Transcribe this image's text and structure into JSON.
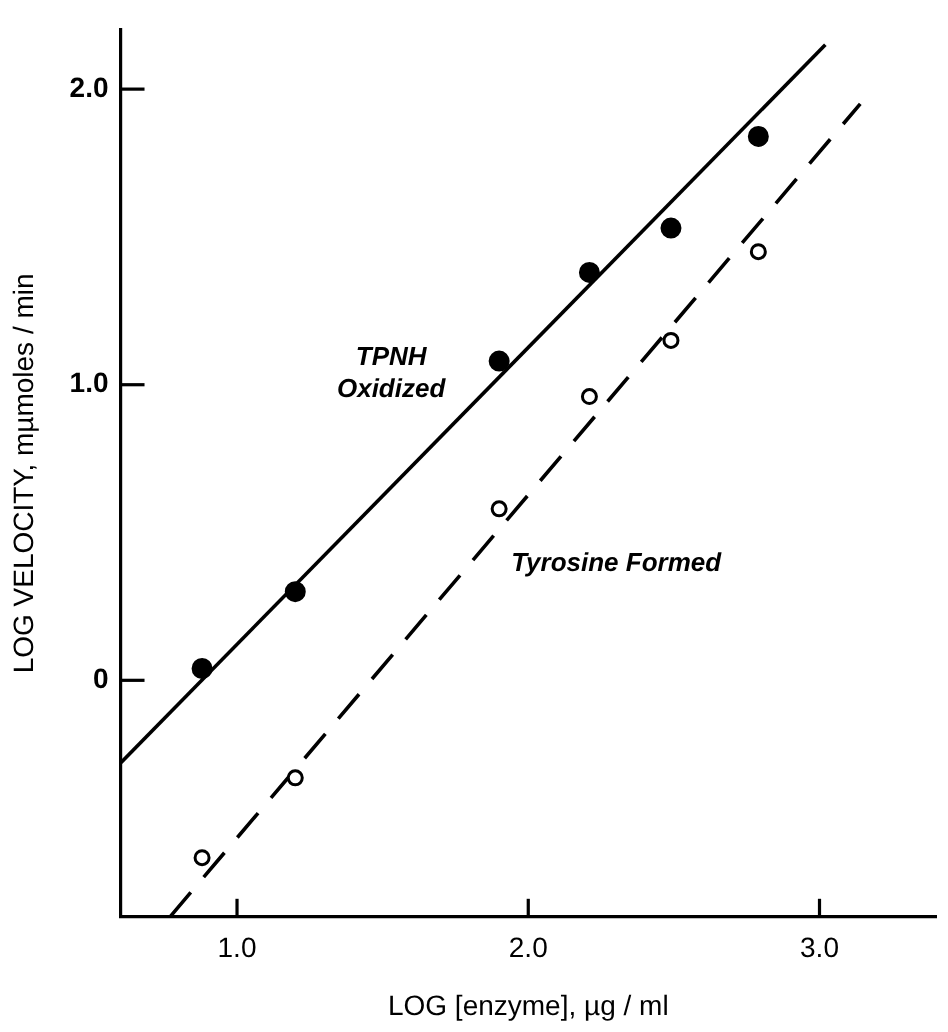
{
  "chart_data": {
    "type": "scatter",
    "xlabel": "LOG [enzyme], µg / ml",
    "ylabel": "LOG VELOCITY, mµmoles / min",
    "xlim": [
      0.6,
      3.4
    ],
    "ylim": [
      -0.8,
      2.2
    ],
    "xticks": [
      {
        "value": 1,
        "label": "1.0"
      },
      {
        "value": 2,
        "label": "2.0"
      },
      {
        "value": 3,
        "label": "3.0"
      }
    ],
    "yticks": [
      0,
      {
        "value": 1,
        "label": "1.0"
      },
      {
        "value": 2,
        "label": "2.0"
      }
    ],
    "grid": false,
    "legend": false,
    "marker": "circle",
    "series": [
      {
        "name": "TPNH\nOxidized",
        "color": "#000000",
        "x": [
          0.88,
          1.2,
          1.9,
          2.21,
          2.49,
          2.79
        ],
        "values": [
          0.04,
          0.3,
          1.08,
          1.38,
          1.53,
          1.84
        ]
      },
      {
        "name": "Tyrosine Formed",
        "color": "#000000",
        "x": [
          0.88,
          1.2,
          1.9,
          2.21,
          2.49,
          2.79
        ],
        "values": [
          -0.6,
          -0.33,
          0.58,
          0.96,
          1.15,
          1.45
        ]
      },
      {
        "type": "line",
        "color": "#000000",
        "marker": "none",
        "line_style": "solid",
        "x": [
          0.6,
          3.02
        ],
        "values": [
          -0.28,
          2.15
        ]
      },
      {
        "type": "line",
        "color": "#000000",
        "marker": "none",
        "line_style": "dashed",
        "x": [
          0.77,
          3.14
        ],
        "values": [
          -0.8,
          1.95
        ]
      }
    ]
  }
}
